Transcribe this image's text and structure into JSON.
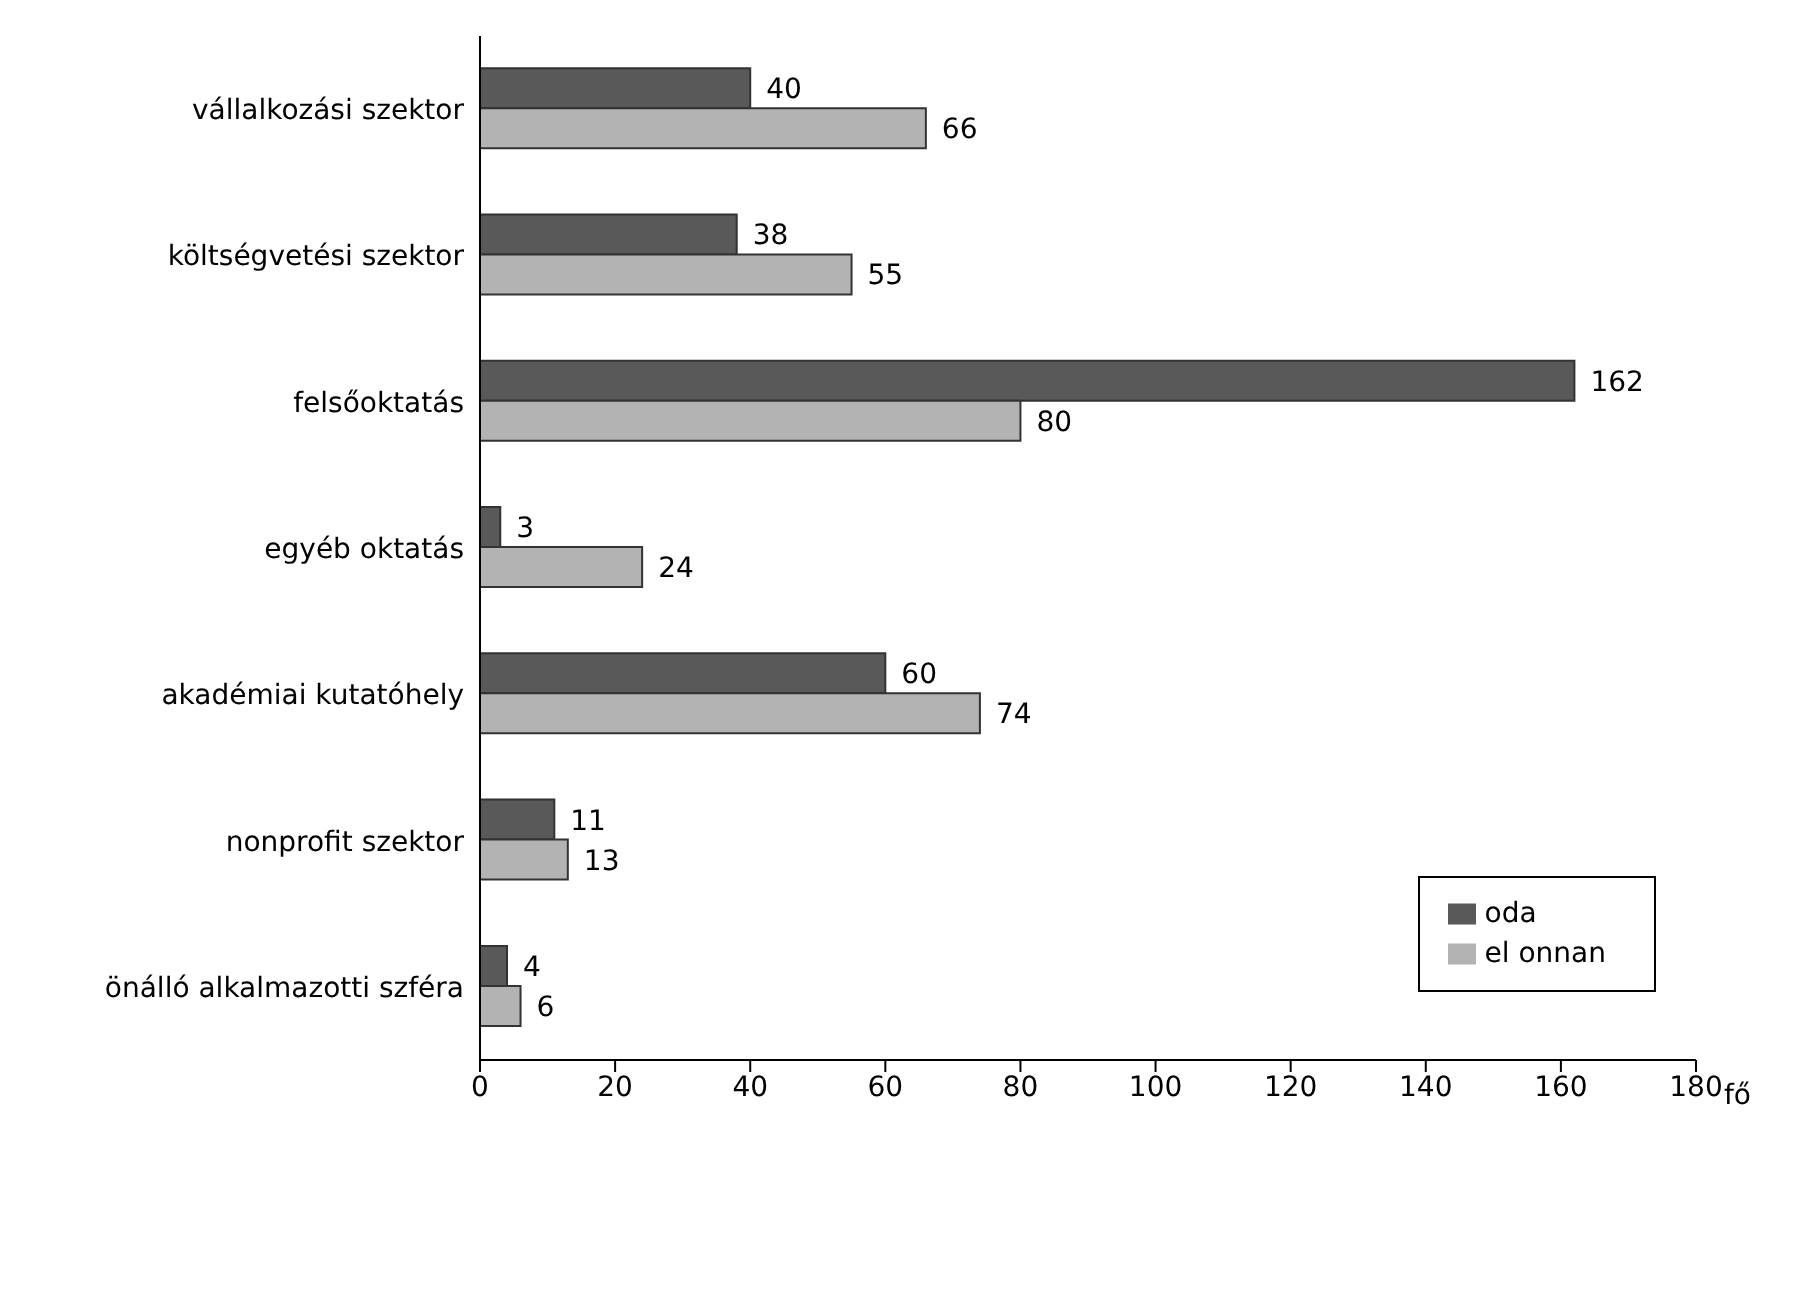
{
  "chart_data": {
    "type": "bar",
    "orientation": "horizontal",
    "xlabel": "fő",
    "categories": [
      "vállalkozási szektor",
      "költségvetési szektor",
      "felsőoktatás",
      "egyéb oktatás",
      "akadémiai kutatóhely",
      "nonprofit szektor",
      "önálló alkalmazotti szféra"
    ],
    "series": [
      {
        "name": "oda",
        "color": "#595959",
        "values": [
          40,
          38,
          162,
          3,
          60,
          11,
          4
        ]
      },
      {
        "name": "el onnan",
        "color": "#b3b3b3",
        "values": [
          66,
          55,
          80,
          24,
          74,
          13,
          6
        ]
      }
    ],
    "xlim": [
      0,
      180
    ],
    "xticks": [
      0,
      20,
      40,
      60,
      80,
      100,
      120,
      140,
      160,
      180
    ],
    "data_labels": true,
    "legend": "bottom right"
  }
}
